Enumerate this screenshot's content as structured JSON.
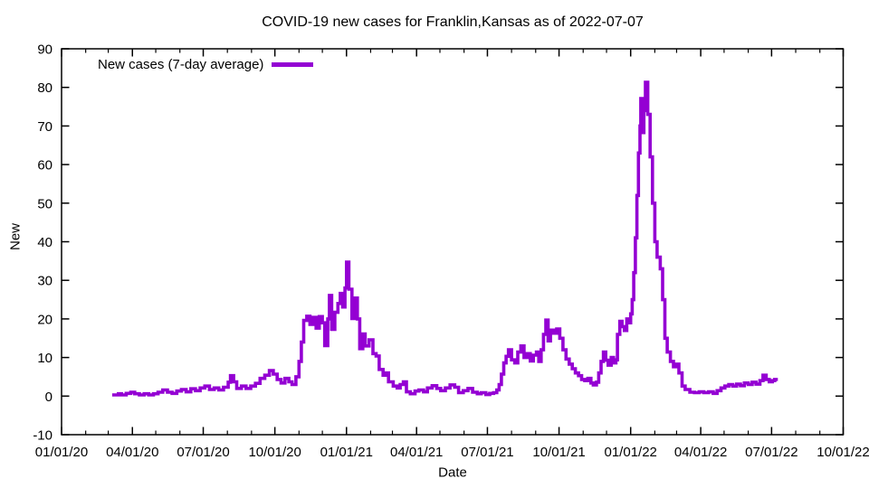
{
  "chart_data": {
    "type": "line",
    "title": "COVID-19 new cases for Franklin,Kansas as of 2022-07-07",
    "xlabel": "Date",
    "ylabel": "New",
    "grid": false,
    "legend_position": "top-left",
    "line_color": "#9400D3",
    "axis_color": "#000000",
    "ylim": [
      -10,
      90
    ],
    "yticks": [
      -10,
      0,
      10,
      20,
      30,
      40,
      50,
      60,
      70,
      80,
      90
    ],
    "xlim": [
      "2020-01-01",
      "2022-10-01"
    ],
    "x_minor_ticks": "monthly",
    "xticks": [
      {
        "label": "01/01/20",
        "date": "2020-01-01"
      },
      {
        "label": "04/01/20",
        "date": "2020-04-01"
      },
      {
        "label": "07/01/20",
        "date": "2020-07-01"
      },
      {
        "label": "10/01/20",
        "date": "2020-10-01"
      },
      {
        "label": "01/01/21",
        "date": "2021-01-01"
      },
      {
        "label": "04/01/21",
        "date": "2021-04-01"
      },
      {
        "label": "07/01/21",
        "date": "2021-07-01"
      },
      {
        "label": "10/01/21",
        "date": "2021-10-01"
      },
      {
        "label": "01/01/22",
        "date": "2022-01-01"
      },
      {
        "label": "04/01/22",
        "date": "2022-04-01"
      },
      {
        "label": "07/01/22",
        "date": "2022-07-01"
      },
      {
        "label": "10/01/22",
        "date": "2022-10-01"
      }
    ],
    "series": [
      {
        "name": "New cases (7-day average)",
        "points": [
          [
            "2020-03-06",
            0.3
          ],
          [
            "2020-03-10",
            0.3
          ],
          [
            "2020-03-14",
            0.6
          ],
          [
            "2020-03-18",
            0.3
          ],
          [
            "2020-03-24",
            0.7
          ],
          [
            "2020-03-30",
            1.0
          ],
          [
            "2020-04-04",
            0.6
          ],
          [
            "2020-04-10",
            0.3
          ],
          [
            "2020-04-16",
            0.6
          ],
          [
            "2020-04-22",
            0.3
          ],
          [
            "2020-04-28",
            0.6
          ],
          [
            "2020-05-04",
            1.0
          ],
          [
            "2020-05-10",
            1.6
          ],
          [
            "2020-05-16",
            1.0
          ],
          [
            "2020-05-22",
            0.7
          ],
          [
            "2020-05-28",
            1.3
          ],
          [
            "2020-06-03",
            1.7
          ],
          [
            "2020-06-09",
            1.1
          ],
          [
            "2020-06-15",
            1.9
          ],
          [
            "2020-06-21",
            1.4
          ],
          [
            "2020-06-27",
            2.1
          ],
          [
            "2020-07-03",
            2.6
          ],
          [
            "2020-07-09",
            1.7
          ],
          [
            "2020-07-15",
            2.1
          ],
          [
            "2020-07-21",
            1.6
          ],
          [
            "2020-07-27",
            2.3
          ],
          [
            "2020-08-02",
            3.6
          ],
          [
            "2020-08-05",
            5.3
          ],
          [
            "2020-08-09",
            3.7
          ],
          [
            "2020-08-13",
            2.0
          ],
          [
            "2020-08-19",
            2.6
          ],
          [
            "2020-08-25",
            2.0
          ],
          [
            "2020-08-31",
            2.6
          ],
          [
            "2020-09-06",
            3.3
          ],
          [
            "2020-09-12",
            4.6
          ],
          [
            "2020-09-18",
            5.4
          ],
          [
            "2020-09-24",
            6.6
          ],
          [
            "2020-09-29",
            5.7
          ],
          [
            "2020-10-04",
            4.3
          ],
          [
            "2020-10-09",
            3.4
          ],
          [
            "2020-10-14",
            4.6
          ],
          [
            "2020-10-19",
            3.7
          ],
          [
            "2020-10-23",
            3.0
          ],
          [
            "2020-10-28",
            5.0
          ],
          [
            "2020-11-01",
            9.0
          ],
          [
            "2020-11-04",
            14.0
          ],
          [
            "2020-11-07",
            19.6
          ],
          [
            "2020-11-11",
            20.7
          ],
          [
            "2020-11-15",
            18.6
          ],
          [
            "2020-11-19",
            20.4
          ],
          [
            "2020-11-23",
            17.6
          ],
          [
            "2020-11-27",
            20.6
          ],
          [
            "2020-12-01",
            19.0
          ],
          [
            "2020-12-04",
            13.1
          ],
          [
            "2020-12-08",
            20.0
          ],
          [
            "2020-12-10",
            26.1
          ],
          [
            "2020-12-13",
            17.3
          ],
          [
            "2020-12-17",
            21.7
          ],
          [
            "2020-12-21",
            24.0
          ],
          [
            "2020-12-24",
            26.6
          ],
          [
            "2020-12-27",
            23.1
          ],
          [
            "2020-12-30",
            28.0
          ],
          [
            "2021-01-01",
            34.7
          ],
          [
            "2021-01-04",
            27.7
          ],
          [
            "2021-01-08",
            20.1
          ],
          [
            "2021-01-12",
            25.4
          ],
          [
            "2021-01-15",
            20.0
          ],
          [
            "2021-01-18",
            12.3
          ],
          [
            "2021-01-22",
            16.1
          ],
          [
            "2021-01-25",
            13.0
          ],
          [
            "2021-01-30",
            14.6
          ],
          [
            "2021-02-04",
            11.0
          ],
          [
            "2021-02-08",
            10.4
          ],
          [
            "2021-02-12",
            6.9
          ],
          [
            "2021-02-17",
            5.4
          ],
          [
            "2021-02-20",
            6.0
          ],
          [
            "2021-02-24",
            3.7
          ],
          [
            "2021-03-02",
            2.6
          ],
          [
            "2021-03-07",
            2.1
          ],
          [
            "2021-03-11",
            3.0
          ],
          [
            "2021-03-15",
            3.7
          ],
          [
            "2021-03-19",
            1.1
          ],
          [
            "2021-03-24",
            0.6
          ],
          [
            "2021-03-30",
            1.3
          ],
          [
            "2021-04-04",
            1.6
          ],
          [
            "2021-04-10",
            1.1
          ],
          [
            "2021-04-15",
            2.1
          ],
          [
            "2021-04-21",
            2.7
          ],
          [
            "2021-04-27",
            2.0
          ],
          [
            "2021-05-02",
            1.4
          ],
          [
            "2021-05-08",
            2.1
          ],
          [
            "2021-05-14",
            2.9
          ],
          [
            "2021-05-20",
            2.3
          ],
          [
            "2021-05-25",
            0.9
          ],
          [
            "2021-05-31",
            1.4
          ],
          [
            "2021-06-06",
            2.0
          ],
          [
            "2021-06-12",
            1.0
          ],
          [
            "2021-06-18",
            0.6
          ],
          [
            "2021-06-23",
            0.9
          ],
          [
            "2021-06-29",
            0.4
          ],
          [
            "2021-07-04",
            0.7
          ],
          [
            "2021-07-09",
            0.9
          ],
          [
            "2021-07-13",
            1.6
          ],
          [
            "2021-07-16",
            3.0
          ],
          [
            "2021-07-19",
            5.7
          ],
          [
            "2021-07-22",
            8.6
          ],
          [
            "2021-07-25",
            10.3
          ],
          [
            "2021-07-28",
            12.0
          ],
          [
            "2021-08-01",
            9.4
          ],
          [
            "2021-08-05",
            8.6
          ],
          [
            "2021-08-09",
            11.4
          ],
          [
            "2021-08-13",
            13.0
          ],
          [
            "2021-08-17",
            10.0
          ],
          [
            "2021-08-21",
            11.0
          ],
          [
            "2021-08-25",
            9.1
          ],
          [
            "2021-08-29",
            10.6
          ],
          [
            "2021-09-02",
            11.4
          ],
          [
            "2021-09-05",
            9.0
          ],
          [
            "2021-09-08",
            12.0
          ],
          [
            "2021-09-11",
            16.0
          ],
          [
            "2021-09-14",
            19.7
          ],
          [
            "2021-09-17",
            14.3
          ],
          [
            "2021-09-20",
            17.1
          ],
          [
            "2021-09-24",
            16.3
          ],
          [
            "2021-09-28",
            17.4
          ],
          [
            "2021-10-02",
            15.0
          ],
          [
            "2021-10-06",
            12.0
          ],
          [
            "2021-10-10",
            9.6
          ],
          [
            "2021-10-14",
            8.3
          ],
          [
            "2021-10-18",
            7.1
          ],
          [
            "2021-10-22",
            6.0
          ],
          [
            "2021-10-26",
            5.3
          ],
          [
            "2021-10-30",
            4.3
          ],
          [
            "2021-11-03",
            4.0
          ],
          [
            "2021-11-07",
            4.6
          ],
          [
            "2021-11-11",
            3.4
          ],
          [
            "2021-11-14",
            2.9
          ],
          [
            "2021-11-18",
            3.6
          ],
          [
            "2021-11-21",
            6.0
          ],
          [
            "2021-11-24",
            9.0
          ],
          [
            "2021-11-27",
            11.4
          ],
          [
            "2021-11-30",
            9.3
          ],
          [
            "2021-12-03",
            8.0
          ],
          [
            "2021-12-07",
            10.0
          ],
          [
            "2021-12-10",
            8.6
          ],
          [
            "2021-12-13",
            9.4
          ],
          [
            "2021-12-15",
            16.0
          ],
          [
            "2021-12-18",
            19.4
          ],
          [
            "2021-12-21",
            18.0
          ],
          [
            "2021-12-24",
            17.0
          ],
          [
            "2021-12-27",
            20.0
          ],
          [
            "2021-12-30",
            19.0
          ],
          [
            "2022-01-01",
            21.3
          ],
          [
            "2022-01-03",
            25.0
          ],
          [
            "2022-01-05",
            32.0
          ],
          [
            "2022-01-07",
            41.0
          ],
          [
            "2022-01-09",
            52.0
          ],
          [
            "2022-01-11",
            63.0
          ],
          [
            "2022-01-13",
            70.0
          ],
          [
            "2022-01-14",
            77.1
          ],
          [
            "2022-01-16",
            68.3
          ],
          [
            "2022-01-18",
            74.0
          ],
          [
            "2022-01-20",
            81.3
          ],
          [
            "2022-01-23",
            73.0
          ],
          [
            "2022-01-26",
            62.0
          ],
          [
            "2022-01-29",
            50.0
          ],
          [
            "2022-02-01",
            40.0
          ],
          [
            "2022-02-04",
            36.0
          ],
          [
            "2022-02-08",
            33.0
          ],
          [
            "2022-02-11",
            25.0
          ],
          [
            "2022-02-14",
            15.0
          ],
          [
            "2022-02-17",
            11.4
          ],
          [
            "2022-02-21",
            9.0
          ],
          [
            "2022-02-25",
            7.6
          ],
          [
            "2022-03-01",
            8.3
          ],
          [
            "2022-03-04",
            6.0
          ],
          [
            "2022-03-08",
            2.6
          ],
          [
            "2022-03-12",
            1.7
          ],
          [
            "2022-03-18",
            1.0
          ],
          [
            "2022-03-24",
            0.9
          ],
          [
            "2022-03-30",
            1.1
          ],
          [
            "2022-04-05",
            0.9
          ],
          [
            "2022-04-11",
            1.1
          ],
          [
            "2022-04-17",
            0.7
          ],
          [
            "2022-04-22",
            1.4
          ],
          [
            "2022-04-27",
            2.1
          ],
          [
            "2022-05-02",
            2.6
          ],
          [
            "2022-05-07",
            3.0
          ],
          [
            "2022-05-12",
            2.6
          ],
          [
            "2022-05-17",
            3.1
          ],
          [
            "2022-05-22",
            2.7
          ],
          [
            "2022-05-27",
            3.4
          ],
          [
            "2022-06-01",
            3.0
          ],
          [
            "2022-06-06",
            3.6
          ],
          [
            "2022-06-11",
            3.1
          ],
          [
            "2022-06-16",
            4.0
          ],
          [
            "2022-06-20",
            5.4
          ],
          [
            "2022-06-24",
            4.3
          ],
          [
            "2022-06-28",
            3.7
          ],
          [
            "2022-07-02",
            4.0
          ],
          [
            "2022-07-05",
            4.3
          ],
          [
            "2022-07-07",
            3.9
          ]
        ]
      }
    ]
  }
}
